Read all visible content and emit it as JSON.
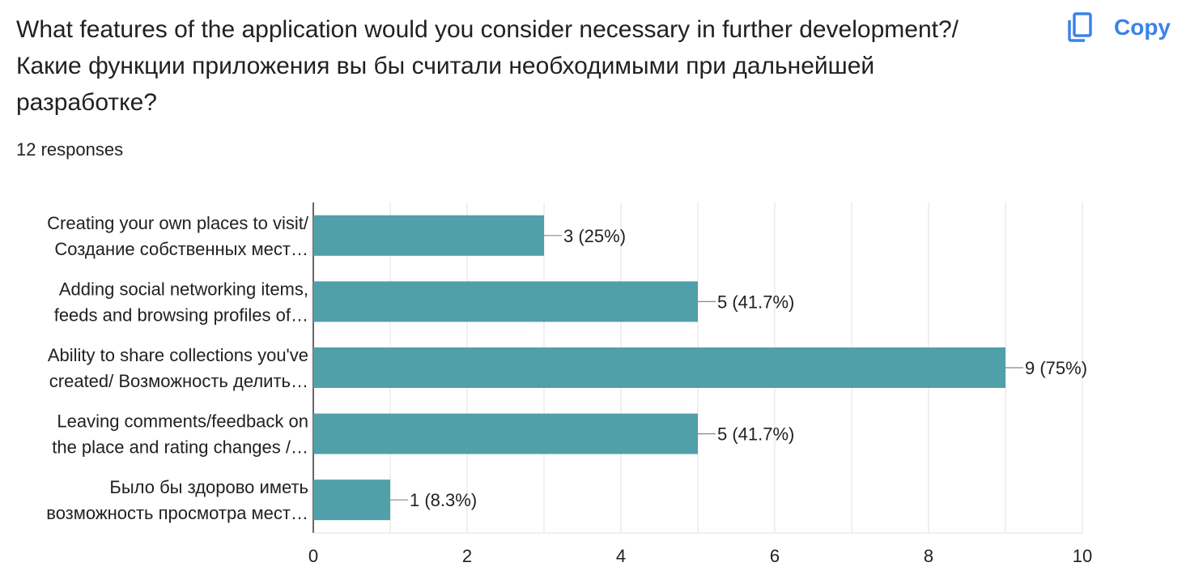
{
  "header": {
    "title": "What features of the application would you consider necessary in further development?/ Какие функции приложения вы бы считали необходимыми при дальнейшей разработке?",
    "responses": "12 responses",
    "copy_label": "Copy",
    "copy_icon": "copy-icon"
  },
  "colors": {
    "bar": "#519fa8",
    "accent": "#1a73e8",
    "grid": "#e0e0e0",
    "axis": "#333333",
    "text": "#202124"
  },
  "chart_data": {
    "type": "bar",
    "orientation": "horizontal",
    "categories": [
      [
        "Creating your own places to visit/",
        "Создание собственных мест…"
      ],
      [
        "Adding social networking items,",
        "feeds and browsing profiles of…"
      ],
      [
        "Ability to share collections you've",
        "created/ Возможность делить…"
      ],
      [
        "Leaving comments/feedback on",
        "the place and rating changes /…"
      ],
      [
        "Было бы здорово иметь",
        "возможность просмотра мест…"
      ]
    ],
    "values": [
      3,
      5,
      9,
      5,
      1
    ],
    "data_labels": [
      "3 (25%)",
      "5 (41.7%)",
      "9 (75%)",
      "5 (41.7%)",
      "1 (8.3%)"
    ],
    "xlim": [
      0,
      10
    ],
    "xticks": [
      0,
      2,
      4,
      6,
      8,
      10
    ],
    "grid": true,
    "legend": "none"
  }
}
